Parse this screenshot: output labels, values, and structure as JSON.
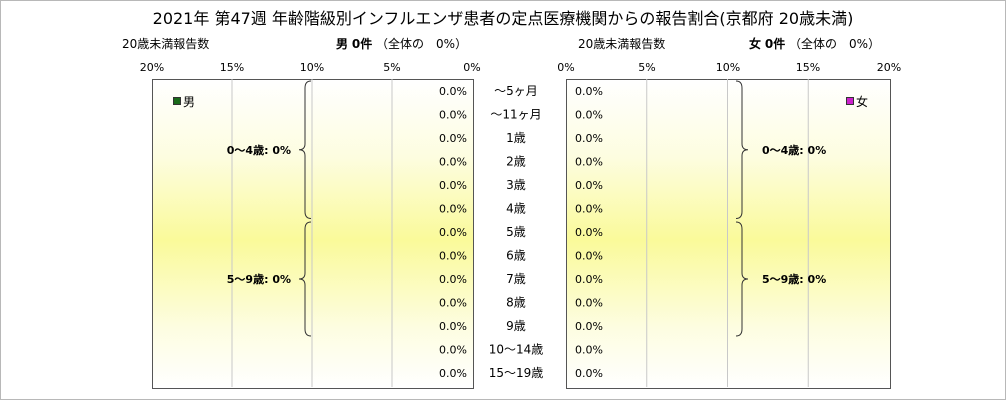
{
  "title": "2021年 第47週 年齢階級別インフルエンザ患者の定点医療機関からの報告割合(京都府 20歳未満)",
  "left_header": {
    "count_label": "20歳未満報告数",
    "panel_title": "男",
    "count_text": "0件",
    "share_text": "（全体の　0%）"
  },
  "right_header": {
    "count_label": "20歳未満報告数",
    "panel_title": "女",
    "count_text": "0件",
    "share_text": "（全体の　0%）"
  },
  "chart_data": {
    "type": "bar",
    "orientation": "horizontal-butterfly",
    "categories": [
      "～5ヶ月",
      "～11ヶ月",
      "1歳",
      "2歳",
      "3歳",
      "4歳",
      "5歳",
      "6歳",
      "7歳",
      "8歳",
      "9歳",
      "10～14歳",
      "15～19歳"
    ],
    "xlim": [
      0,
      20
    ],
    "x_ticks": [
      "20%",
      "15%",
      "10%",
      "5%",
      "0%"
    ],
    "x_ticks_right": [
      "0%",
      "5%",
      "10%",
      "15%",
      "20%"
    ],
    "series": [
      {
        "name": "男",
        "color": "#1a6a1a",
        "values": [
          0,
          0,
          0,
          0,
          0,
          0,
          0,
          0,
          0,
          0,
          0,
          0,
          0
        ],
        "data_labels": [
          "0.0%",
          "0.0%",
          "0.0%",
          "0.0%",
          "0.0%",
          "0.0%",
          "0.0%",
          "0.0%",
          "0.0%",
          "0.0%",
          "0.0%",
          "0.0%",
          "0.0%"
        ]
      },
      {
        "name": "女",
        "color": "#cc22cc",
        "values": [
          0,
          0,
          0,
          0,
          0,
          0,
          0,
          0,
          0,
          0,
          0,
          0,
          0
        ],
        "data_labels": [
          "0.0%",
          "0.0%",
          "0.0%",
          "0.0%",
          "0.0%",
          "0.0%",
          "0.0%",
          "0.0%",
          "0.0%",
          "0.0%",
          "0.0%",
          "0.0%",
          "0.0%"
        ]
      }
    ],
    "group_annotations": [
      {
        "label": "0～4歳: 0%",
        "from": 0,
        "to": 5
      },
      {
        "label": "5～9歳: 0%",
        "from": 6,
        "to": 10
      }
    ],
    "grid": true,
    "legend_position": "top-corner"
  }
}
